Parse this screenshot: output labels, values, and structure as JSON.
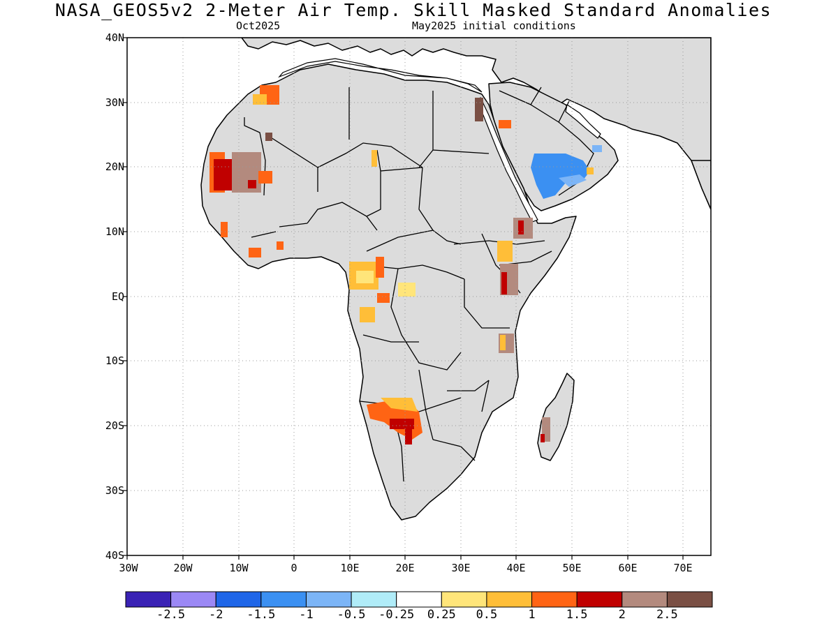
{
  "title": "NASA_GEOS5v2 2-Meter Air Temp. Skill Masked Standard Anomalies",
  "subtitle_left": "Oct2025",
  "subtitle_right": "May2025 initial conditions",
  "map": {
    "region": "Africa",
    "lon_range": [
      -30,
      75
    ],
    "lat_range": [
      -40,
      40
    ],
    "lat_ticks": [
      "40N",
      "30N",
      "20N",
      "10N",
      "EQ",
      "10S",
      "20S",
      "30S",
      "40S"
    ],
    "lon_ticks": [
      "30W",
      "20W",
      "10W",
      "0",
      "10E",
      "20E",
      "30E",
      "40E",
      "50E",
      "60E",
      "70E"
    ],
    "land_color": "#dcdcdc",
    "grid": "dotted"
  },
  "colorbar": {
    "colors": [
      "#3a22b5",
      "#9b88f5",
      "#1f66e8",
      "#3b90f2",
      "#7cb5f7",
      "#b0ecf8",
      "#ffffff",
      "#ffe57a",
      "#ffbe38",
      "#ff6414",
      "#c00000",
      "#b38a7e",
      "#7a4f44"
    ],
    "labels": [
      "-2.5",
      "-2",
      "-1.5",
      "-1",
      "-0.5",
      "-0.25",
      "0.25",
      "0.5",
      "1",
      "1.5",
      "2",
      "2.5"
    ]
  }
}
